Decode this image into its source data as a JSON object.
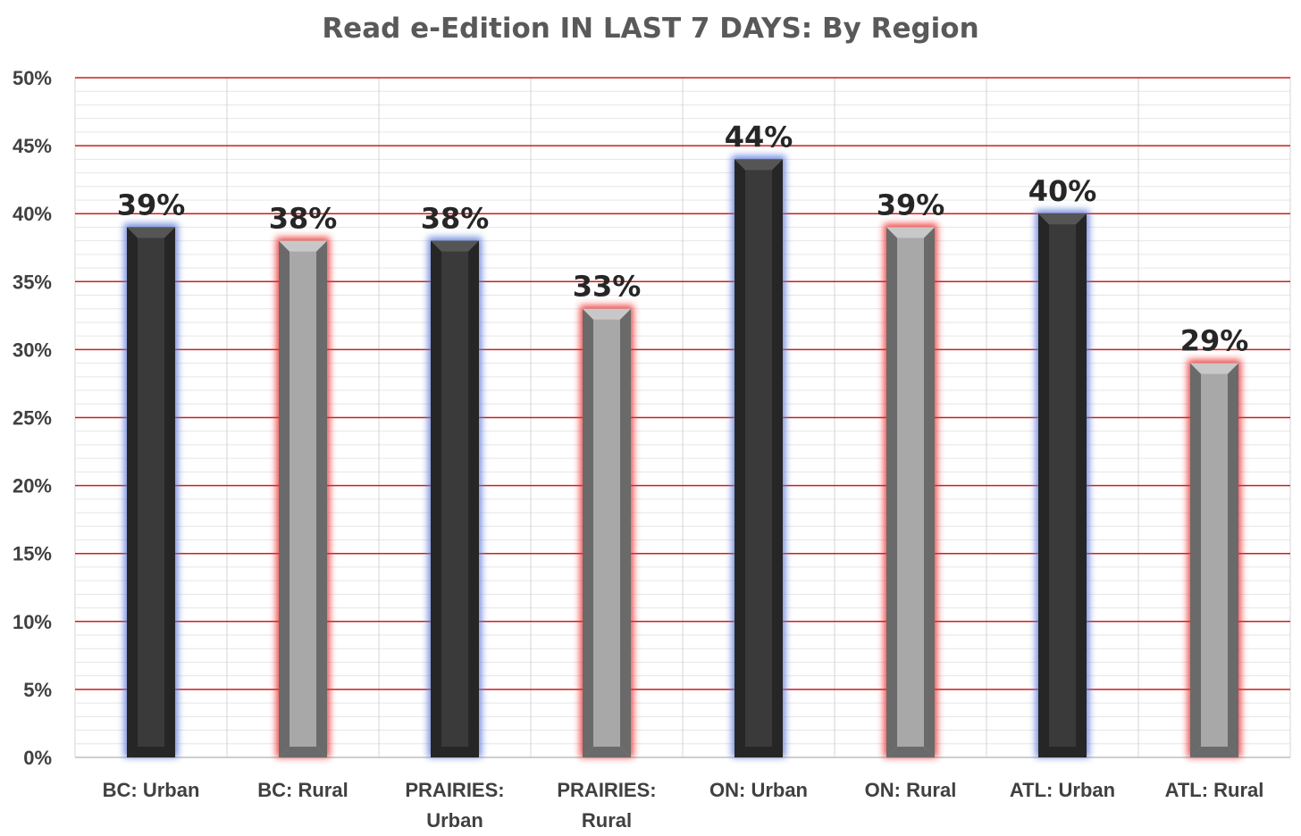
{
  "chart_data": {
    "type": "bar",
    "title": "Read e-Edition IN LAST 7 DAYS: By Region",
    "categories": [
      [
        "BC: Urban"
      ],
      [
        "BC: Rural"
      ],
      [
        "PRAIRIES:",
        "Urban"
      ],
      [
        "PRAIRIES:",
        "Rural"
      ],
      [
        "ON: Urban"
      ],
      [
        "ON: Rural"
      ],
      [
        "ATL: Urban"
      ],
      [
        "ATL: Rural"
      ]
    ],
    "values": [
      39,
      38,
      38,
      33,
      44,
      39,
      40,
      29
    ],
    "data_labels": [
      "39%",
      "38%",
      "38%",
      "33%",
      "44%",
      "39%",
      "40%",
      "29%"
    ],
    "y_ticks": [
      "0%",
      "5%",
      "10%",
      "15%",
      "20%",
      "25%",
      "30%",
      "35%",
      "40%",
      "45%",
      "50%"
    ],
    "ylim": [
      0,
      50
    ],
    "grid": true,
    "legend": "none",
    "colors": {
      "urban_fill": "#3a3a3a",
      "urban_glow": "#5a78d8",
      "rural_fill": "#a8a8a8",
      "rural_glow": "#ee2a2a",
      "major_grid": "#cc1f1f",
      "minor_grid": "#e6e6e6"
    }
  }
}
